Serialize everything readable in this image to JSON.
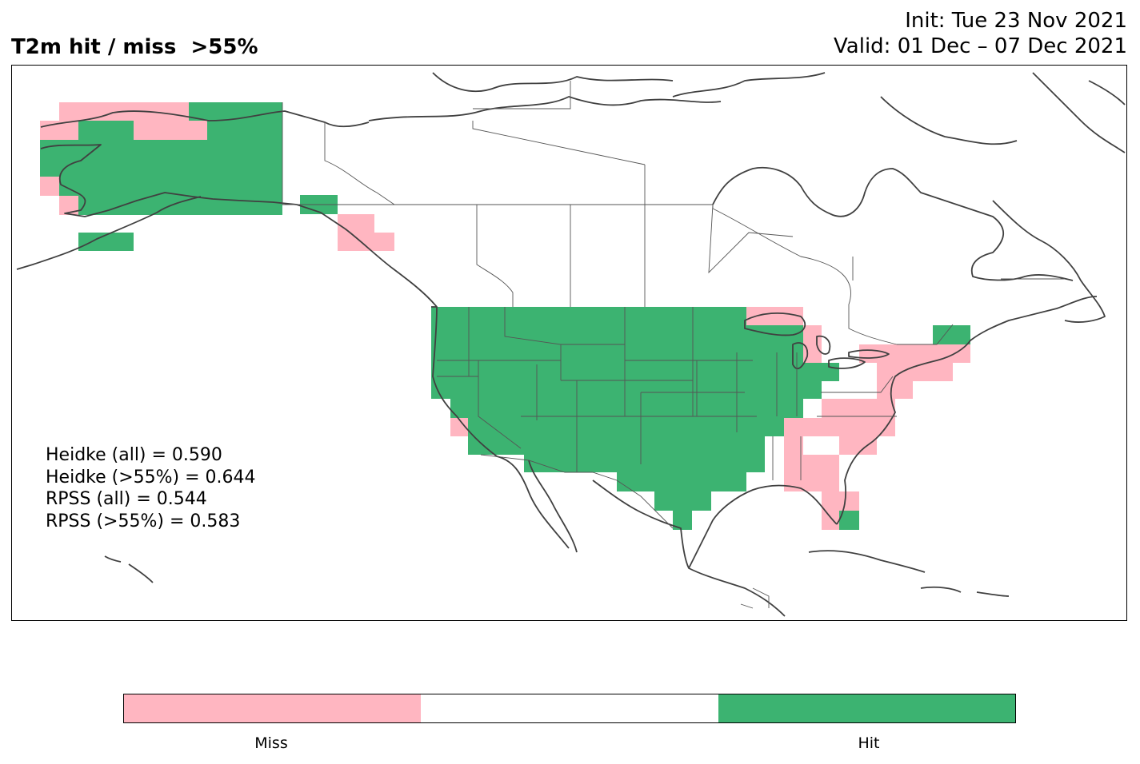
{
  "title": "T2m hit / miss  >55%",
  "init_line": "Init: Tue 23 Nov 2021",
  "valid_line": "Valid: 01 Dec – 07 Dec 2021",
  "stats": [
    "Heidke (all) = 0.590",
    "Heidke (>55%) = 0.644",
    "RPSS (all) = 0.544",
    "RPSS (>55%) = 0.583"
  ],
  "colors": {
    "miss": "#ffb6c1",
    "neutral": "#ffffff",
    "hit": "#3cb371",
    "coast": "#404040",
    "border": "#555555"
  },
  "legend": {
    "miss_label": "Miss",
    "hit_label": "Hit"
  }
}
